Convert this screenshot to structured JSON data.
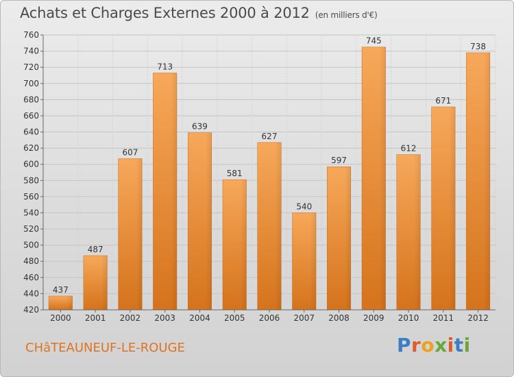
{
  "title": "Achats et Charges Externes 2000 à 2012",
  "unit": "(en milliers d'€)",
  "place": "CHâTEAUNEUF-LE-ROUGE",
  "logo": "Proxiti",
  "colors": {
    "bar_top": "#f5a455",
    "bar_bottom": "#d9771f",
    "title": "#4a4a4a",
    "place": "#e0731f"
  },
  "chart_data": {
    "type": "bar",
    "categories": [
      "2000",
      "2001",
      "2002",
      "2003",
      "2004",
      "2005",
      "2006",
      "2007",
      "2008",
      "2009",
      "2010",
      "2011",
      "2012"
    ],
    "values": [
      437,
      487,
      607,
      713,
      639,
      581,
      627,
      540,
      597,
      745,
      612,
      671,
      738
    ],
    "ylim": [
      420,
      760
    ],
    "yticks": [
      420,
      440,
      460,
      480,
      500,
      520,
      540,
      560,
      580,
      600,
      620,
      640,
      660,
      680,
      700,
      720,
      740,
      760
    ],
    "grid": true
  }
}
